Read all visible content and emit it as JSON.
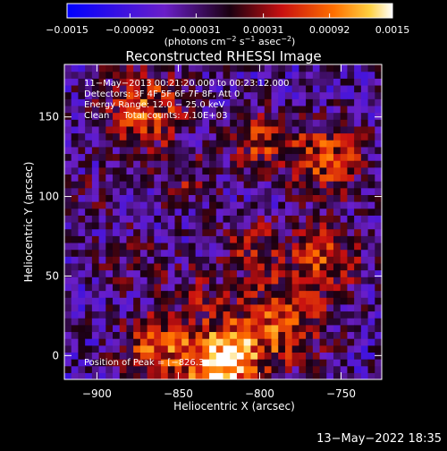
{
  "chart_data": {
    "type": "heatmap",
    "title": "Reconstructed RHESSI Image",
    "xlabel": "Heliocentric X (arcsec)",
    "ylabel": "Heliocentric Y (arcsec)",
    "xlim": [
      -920,
      -725
    ],
    "ylim": [
      -15,
      183
    ],
    "xticks": [
      -900,
      -850,
      -800,
      -750
    ],
    "yticks": [
      0,
      50,
      100,
      150
    ],
    "xtick_labels": [
      "−900",
      "−850",
      "−800",
      "−750"
    ],
    "ytick_labels": [
      "0",
      "50",
      "100",
      "150"
    ],
    "colorbar": {
      "min": -0.0015,
      "max": 0.0015,
      "ticks": [
        -0.0015,
        -0.00092,
        -0.00031,
        0.00031,
        0.00092,
        0.0015
      ],
      "tick_labels": [
        "−0.0015",
        "−0.00092",
        "−0.00031",
        "0.00031",
        "0.00092",
        "0.0015"
      ],
      "label_text": "(photons cm",
      "label_exp1": "−2",
      "label_mid": " s",
      "label_exp2": "−1",
      "label_tail": " asec",
      "label_exp3": "−2",
      "label_close": ")"
    },
    "annotations": [
      "11−May−2013 00:21:20.000 to 00:23:12.000",
      "Detectors: 3F 4F 5F 6F 7F 8F, Att 0",
      "Energy Range: 12.0 − 25.0 keV",
      "Clean     Total counts: 7.10E+03"
    ],
    "peak_label": "Position of Peak = [−826.3",
    "sources": [
      {
        "x": -825,
        "y": -5,
        "sigma": 16,
        "amp": 0.0019
      },
      {
        "x": -865,
        "y": 5,
        "sigma": 14,
        "amp": 0.0012
      },
      {
        "x": -790,
        "y": 20,
        "sigma": 20,
        "amp": 0.0011
      },
      {
        "x": -760,
        "y": 60,
        "sigma": 16,
        "amp": 0.001
      },
      {
        "x": -758,
        "y": 125,
        "sigma": 16,
        "amp": 0.0011
      },
      {
        "x": -800,
        "y": 135,
        "sigma": 14,
        "amp": 0.0009
      },
      {
        "x": -870,
        "y": 155,
        "sigma": 18,
        "amp": 0.0011
      },
      {
        "x": -845,
        "y": 110,
        "sigma": 12,
        "amp": 0.0006
      },
      {
        "x": -805,
        "y": 70,
        "sigma": 12,
        "amp": 0.0007
      },
      {
        "x": -880,
        "y": 60,
        "sigma": 14,
        "amp": 0.0004
      },
      {
        "x": -900,
        "y": 100,
        "sigma": 12,
        "amp": 0.0003
      },
      {
        "x": -840,
        "y": 40,
        "sigma": 14,
        "amp": 0.0005
      }
    ],
    "background": -0.00045,
    "grid_n": 46
  },
  "footer_timestamp": "13−May−2022 18:35"
}
